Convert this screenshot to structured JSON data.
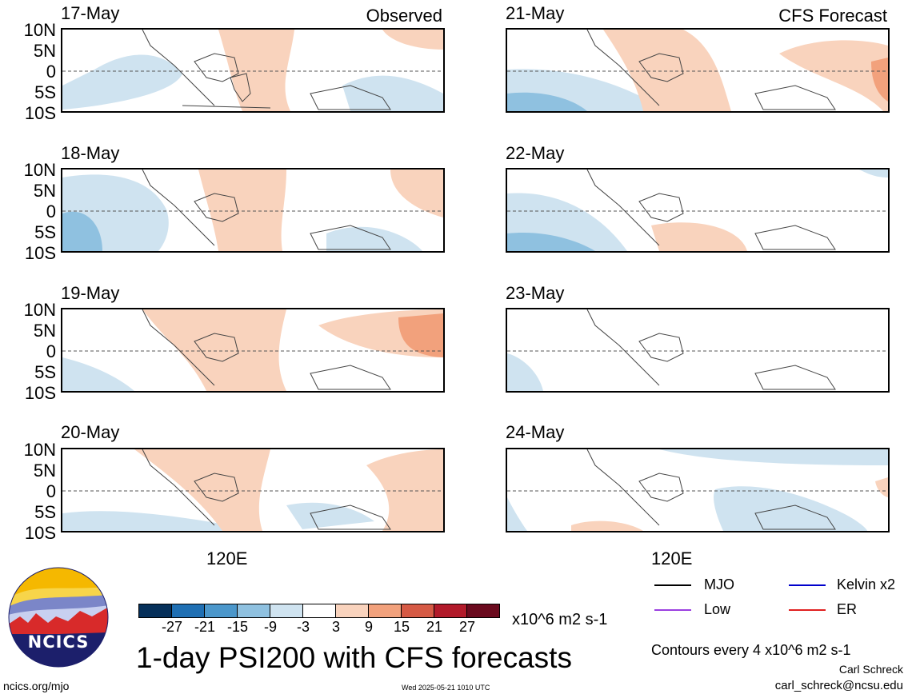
{
  "panels": {
    "left": [
      {
        "date": "17-May",
        "tag": "Observed"
      },
      {
        "date": "18-May",
        "tag": ""
      },
      {
        "date": "19-May",
        "tag": ""
      },
      {
        "date": "20-May",
        "tag": ""
      }
    ],
    "right": [
      {
        "date": "21-May",
        "tag": "CFS Forecast"
      },
      {
        "date": "22-May",
        "tag": ""
      },
      {
        "date": "23-May",
        "tag": ""
      },
      {
        "date": "24-May",
        "tag": ""
      }
    ]
  },
  "lat_labels": [
    "10N",
    "5N",
    "0",
    "5S",
    "10S"
  ],
  "lon_label": "120E",
  "colorbar": {
    "ticks": [
      "-27",
      "-21",
      "-15",
      "-9",
      "-3",
      "3",
      "9",
      "15",
      "21",
      "27"
    ],
    "colors": [
      "#06305a",
      "#1f6fb3",
      "#4b97cb",
      "#8fc1e0",
      "#cfe3f0",
      "#ffffff",
      "#f9d3bd",
      "#f2a17c",
      "#d65a45",
      "#b21a2a",
      "#6b0a1e"
    ],
    "units": "x10^6 m2 s-1"
  },
  "title": "1-day PSI200 with CFS forecasts",
  "legend": [
    {
      "label": "MJO",
      "color": "#000000"
    },
    {
      "label": "Kelvin x2",
      "color": "#0000cc"
    },
    {
      "label": "Low",
      "color": "#9b3fe0"
    },
    {
      "label": "ER",
      "color": "#e02020"
    }
  ],
  "contour_note": "Contours every 4 x10^6 m2 s-1",
  "author": "Carl Schreck",
  "email": "carl_schreck@ncsu.edu",
  "site": "ncics.org/mjo",
  "timestamp": "Wed 2025-05-21 1010 UTC",
  "logo_text": "NCICS"
}
